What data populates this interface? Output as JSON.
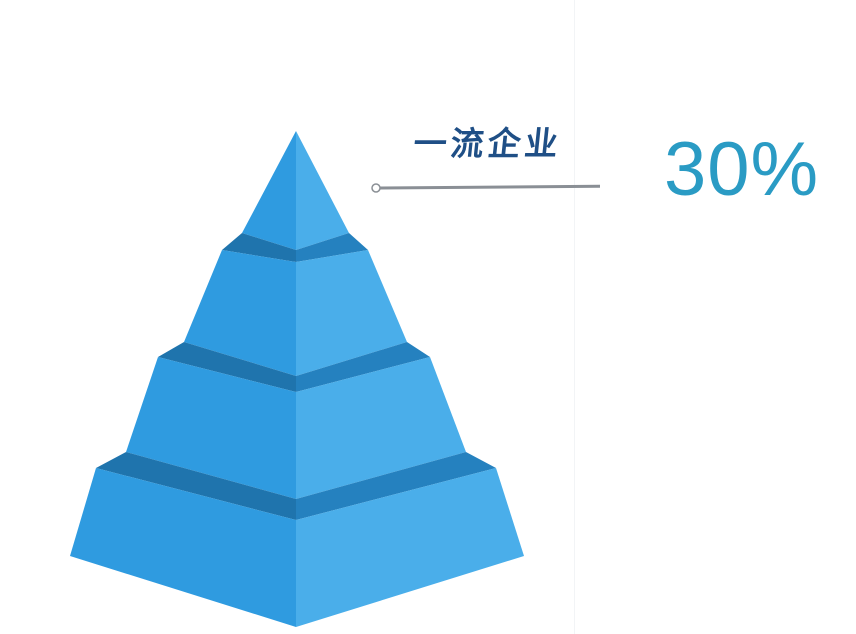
{
  "callout": {
    "label": "一流企业",
    "value": "30%"
  },
  "colors": {
    "face_left": "#2f9be0",
    "face_right": "#4aaeea",
    "band": "#1f74ad",
    "label": "#1f4f86",
    "value": "#2a9bc4",
    "leader": "#8a8f95"
  }
}
